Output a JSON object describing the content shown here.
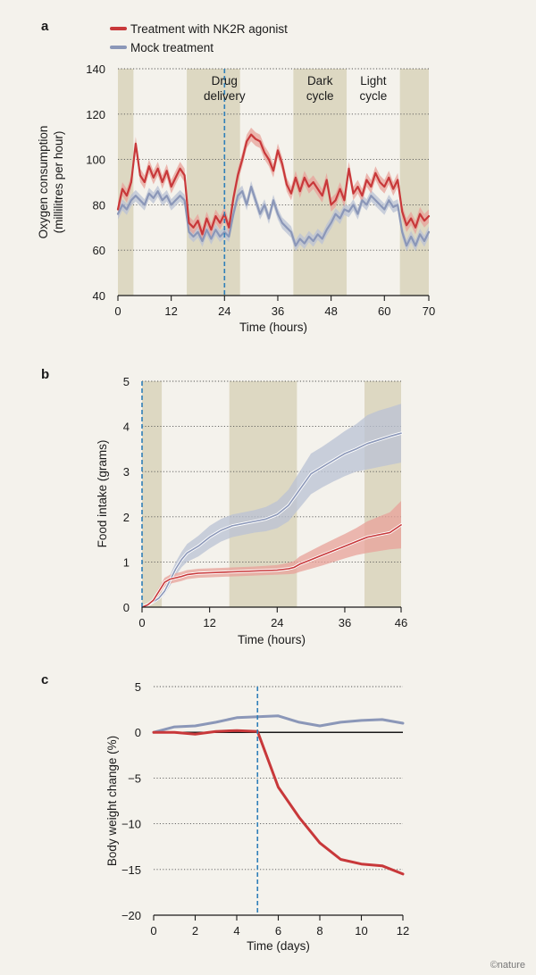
{
  "legend": {
    "treatment": "Treatment with NK2R agonist",
    "mock": "Mock treatment"
  },
  "colors": {
    "treatment": "#c8383a",
    "treatment_band": "#e8a29a",
    "mock": "#8b97b8",
    "mock_band": "#b9c2d4",
    "shade": "#ddd8c2",
    "marker": "#2f7fb8",
    "axis": "#1a1a1a"
  },
  "credit": "©nature",
  "chart_data": [
    {
      "id": "a",
      "panel_letter": "a",
      "type": "line",
      "xlabel": "Time (hours)",
      "ylabel_lines": [
        "Oxygen consumption",
        "(millilitres per hour)"
      ],
      "xlim": [
        0,
        70
      ],
      "ylim": [
        40,
        140
      ],
      "xticks": [
        0,
        12,
        24,
        36,
        48,
        60,
        70
      ],
      "yticks": [
        40,
        60,
        80,
        100,
        120,
        140
      ],
      "ytick_labels": [
        "40",
        "60",
        "80",
        "100",
        "120",
        "140"
      ],
      "dark_cycles": [
        [
          0,
          3.5
        ],
        [
          15.5,
          27.5
        ],
        [
          39.5,
          51.5
        ],
        [
          63.5,
          70
        ]
      ],
      "drug_delivery_x": 24,
      "annotations": [
        {
          "lines": [
            "Drug",
            "delivery"
          ],
          "x": 24,
          "y": 133
        },
        {
          "lines": [
            "Dark",
            "cycle"
          ],
          "x": 45.5,
          "y": 133
        },
        {
          "lines": [
            "Light",
            "cycle"
          ],
          "x": 57.5,
          "y": 133
        }
      ],
      "series": [
        {
          "name": "Treatment with NK2R agonist",
          "band": 3,
          "x": [
            0,
            1,
            2,
            3,
            4,
            5,
            6,
            7,
            8,
            9,
            10,
            11,
            12,
            13,
            14,
            15,
            16,
            17,
            18,
            19,
            20,
            21,
            22,
            23,
            24,
            25,
            26,
            27,
            28,
            29,
            30,
            31,
            32,
            33,
            34,
            35,
            36,
            37,
            38,
            39,
            40,
            41,
            42,
            43,
            44,
            45,
            46,
            47,
            48,
            49,
            50,
            51,
            52,
            53,
            54,
            55,
            56,
            57,
            58,
            59,
            60,
            61,
            62,
            63,
            64,
            65,
            66,
            67,
            68,
            69,
            70
          ],
          "y": [
            78,
            87,
            84,
            90,
            107,
            93,
            90,
            97,
            92,
            96,
            90,
            95,
            88,
            92,
            96,
            93,
            72,
            70,
            73,
            67,
            74,
            69,
            75,
            72,
            76,
            70,
            83,
            93,
            100,
            108,
            111,
            109,
            108,
            103,
            100,
            95,
            104,
            98,
            89,
            85,
            92,
            86,
            92,
            88,
            90,
            87,
            84,
            91,
            80,
            82,
            87,
            82,
            96,
            85,
            88,
            84,
            91,
            88,
            94,
            90,
            88,
            92,
            87,
            91,
            77,
            71,
            74,
            70,
            76,
            73,
            75
          ]
        },
        {
          "name": "Mock treatment",
          "band": 2.5,
          "x": [
            0,
            1,
            2,
            3,
            4,
            5,
            6,
            7,
            8,
            9,
            10,
            11,
            12,
            13,
            14,
            15,
            16,
            17,
            18,
            19,
            20,
            21,
            22,
            23,
            24,
            25,
            26,
            27,
            28,
            29,
            30,
            31,
            32,
            33,
            34,
            35,
            36,
            37,
            38,
            39,
            40,
            41,
            42,
            43,
            44,
            45,
            46,
            47,
            48,
            49,
            50,
            51,
            52,
            53,
            54,
            55,
            56,
            57,
            58,
            59,
            60,
            61,
            62,
            63,
            64,
            65,
            66,
            67,
            68,
            69,
            70
          ],
          "y": [
            76,
            80,
            78,
            82,
            84,
            82,
            80,
            85,
            83,
            86,
            82,
            84,
            80,
            82,
            84,
            82,
            68,
            66,
            68,
            64,
            69,
            65,
            69,
            66,
            68,
            66,
            76,
            84,
            86,
            80,
            88,
            82,
            76,
            80,
            74,
            82,
            76,
            72,
            70,
            68,
            62,
            65,
            63,
            66,
            64,
            67,
            65,
            69,
            72,
            76,
            74,
            78,
            77,
            80,
            76,
            82,
            80,
            84,
            82,
            80,
            78,
            82,
            79,
            80,
            68,
            62,
            66,
            62,
            67,
            64,
            68
          ]
        }
      ]
    },
    {
      "id": "b",
      "panel_letter": "b",
      "type": "line",
      "xlabel": "Time (hours)",
      "ylabel_lines": [
        "Food intake (grams)"
      ],
      "xlim": [
        0,
        46
      ],
      "ylim": [
        0,
        5
      ],
      "xticks": [
        0,
        12,
        24,
        36,
        46
      ],
      "yticks": [
        0,
        1,
        2,
        3,
        4,
        5
      ],
      "ytick_labels": [
        "0",
        "1",
        "2",
        "3",
        "4",
        "5"
      ],
      "dark_cycles": [
        [
          0,
          3.5
        ],
        [
          15.5,
          27.5
        ],
        [
          39.5,
          46
        ]
      ],
      "drug_delivery_x": 0,
      "annotations": [],
      "series": [
        {
          "name": "Treatment with NK2R agonist",
          "x": [
            0,
            1,
            2,
            3,
            4,
            5,
            6,
            7,
            8,
            10,
            12,
            16,
            20,
            24,
            26,
            27,
            28,
            30,
            32,
            34,
            36,
            38,
            40,
            42,
            44,
            46
          ],
          "y": [
            0,
            0.05,
            0.15,
            0.35,
            0.55,
            0.62,
            0.65,
            0.68,
            0.72,
            0.75,
            0.76,
            0.78,
            0.8,
            0.82,
            0.85,
            0.88,
            0.95,
            1.05,
            1.15,
            1.25,
            1.35,
            1.45,
            1.55,
            1.6,
            1.65,
            1.82
          ],
          "lower": [
            0,
            0.03,
            0.1,
            0.27,
            0.45,
            0.52,
            0.55,
            0.58,
            0.62,
            0.65,
            0.66,
            0.68,
            0.7,
            0.72,
            0.73,
            0.74,
            0.78,
            0.85,
            0.92,
            1.0,
            1.08,
            1.15,
            1.2,
            1.24,
            1.28,
            1.3
          ],
          "upper": [
            0,
            0.07,
            0.2,
            0.43,
            0.65,
            0.72,
            0.75,
            0.78,
            0.82,
            0.85,
            0.86,
            0.88,
            0.9,
            0.93,
            0.98,
            1.02,
            1.12,
            1.25,
            1.38,
            1.5,
            1.62,
            1.75,
            1.9,
            2.0,
            2.1,
            2.35
          ]
        },
        {
          "name": "Mock treatment",
          "x": [
            0,
            1,
            2,
            3,
            4,
            5,
            6,
            7,
            8,
            10,
            12,
            14,
            16,
            18,
            20,
            22,
            24,
            26,
            28,
            30,
            32,
            34,
            36,
            38,
            40,
            42,
            44,
            46
          ],
          "y": [
            0,
            0.05,
            0.12,
            0.2,
            0.35,
            0.6,
            0.85,
            1.05,
            1.2,
            1.35,
            1.55,
            1.7,
            1.8,
            1.85,
            1.9,
            1.95,
            2.05,
            2.25,
            2.6,
            2.95,
            3.1,
            3.25,
            3.4,
            3.5,
            3.62,
            3.7,
            3.78,
            3.85
          ],
          "lower": [
            0,
            0.03,
            0.08,
            0.15,
            0.28,
            0.48,
            0.7,
            0.88,
            1.0,
            1.12,
            1.3,
            1.45,
            1.55,
            1.6,
            1.65,
            1.68,
            1.75,
            1.9,
            2.2,
            2.5,
            2.65,
            2.78,
            2.9,
            3.0,
            3.05,
            3.1,
            3.15,
            3.2
          ],
          "upper": [
            0,
            0.07,
            0.16,
            0.25,
            0.42,
            0.72,
            1.0,
            1.22,
            1.4,
            1.58,
            1.8,
            1.95,
            2.05,
            2.1,
            2.15,
            2.22,
            2.35,
            2.6,
            3.0,
            3.4,
            3.55,
            3.72,
            3.9,
            4.05,
            4.25,
            4.35,
            4.42,
            4.5
          ]
        }
      ]
    },
    {
      "id": "c",
      "panel_letter": "c",
      "type": "line",
      "xlabel": "Time (days)",
      "ylabel_lines": [
        "Body weight change (%)"
      ],
      "xlim": [
        0,
        12
      ],
      "ylim": [
        -20,
        5
      ],
      "xticks": [
        0,
        2,
        4,
        6,
        8,
        10,
        12
      ],
      "yticks": [
        -20,
        -15,
        -10,
        -5,
        0,
        5
      ],
      "ytick_labels": [
        "−20",
        "−15",
        "−10",
        "−5",
        "0",
        "5"
      ],
      "dark_cycles": [],
      "drug_delivery_x": 5,
      "zero_line": true,
      "annotations": [],
      "series": [
        {
          "name": "Treatment with NK2R agonist",
          "x": [
            0,
            1,
            2,
            3,
            4,
            5,
            6,
            7,
            8,
            9,
            10,
            11,
            12
          ],
          "y": [
            0,
            0,
            -0.2,
            0.1,
            0.2,
            0.1,
            -6,
            -9.3,
            -12.1,
            -13.9,
            -14.4,
            -14.6,
            -15.5
          ]
        },
        {
          "name": "Mock treatment",
          "x": [
            0,
            1,
            2,
            3,
            4,
            5,
            6,
            7,
            8,
            9,
            10,
            11,
            12
          ],
          "y": [
            0,
            0.6,
            0.7,
            1.1,
            1.6,
            1.7,
            1.8,
            1.1,
            0.7,
            1.1,
            1.3,
            1.4,
            1.0
          ]
        }
      ]
    }
  ]
}
